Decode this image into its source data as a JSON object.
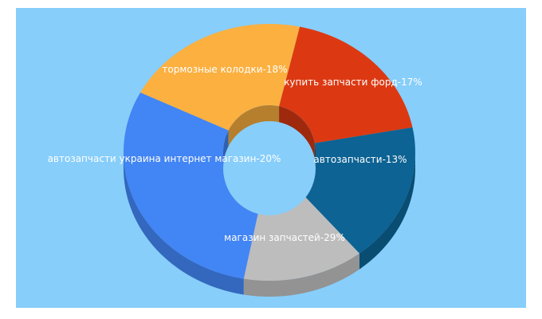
{
  "chart_data": {
    "type": "pie",
    "variant": "3d-donut",
    "background_color": "#87cefa",
    "slices": [
      {
        "label": "тормозные колодки",
        "value": 18,
        "color": "#dc3912"
      },
      {
        "label": "купить запчасти форд",
        "value": 17,
        "color": "#0d6393"
      },
      {
        "label": "автозапчасти",
        "value": 13,
        "color": "#bdbdbd"
      },
      {
        "label": "магазин запчастей",
        "value": 29,
        "color": "#4285f4"
      },
      {
        "label": "автозапчасти украина интернет магазин",
        "value": 20,
        "color": "#fbb040"
      }
    ]
  }
}
